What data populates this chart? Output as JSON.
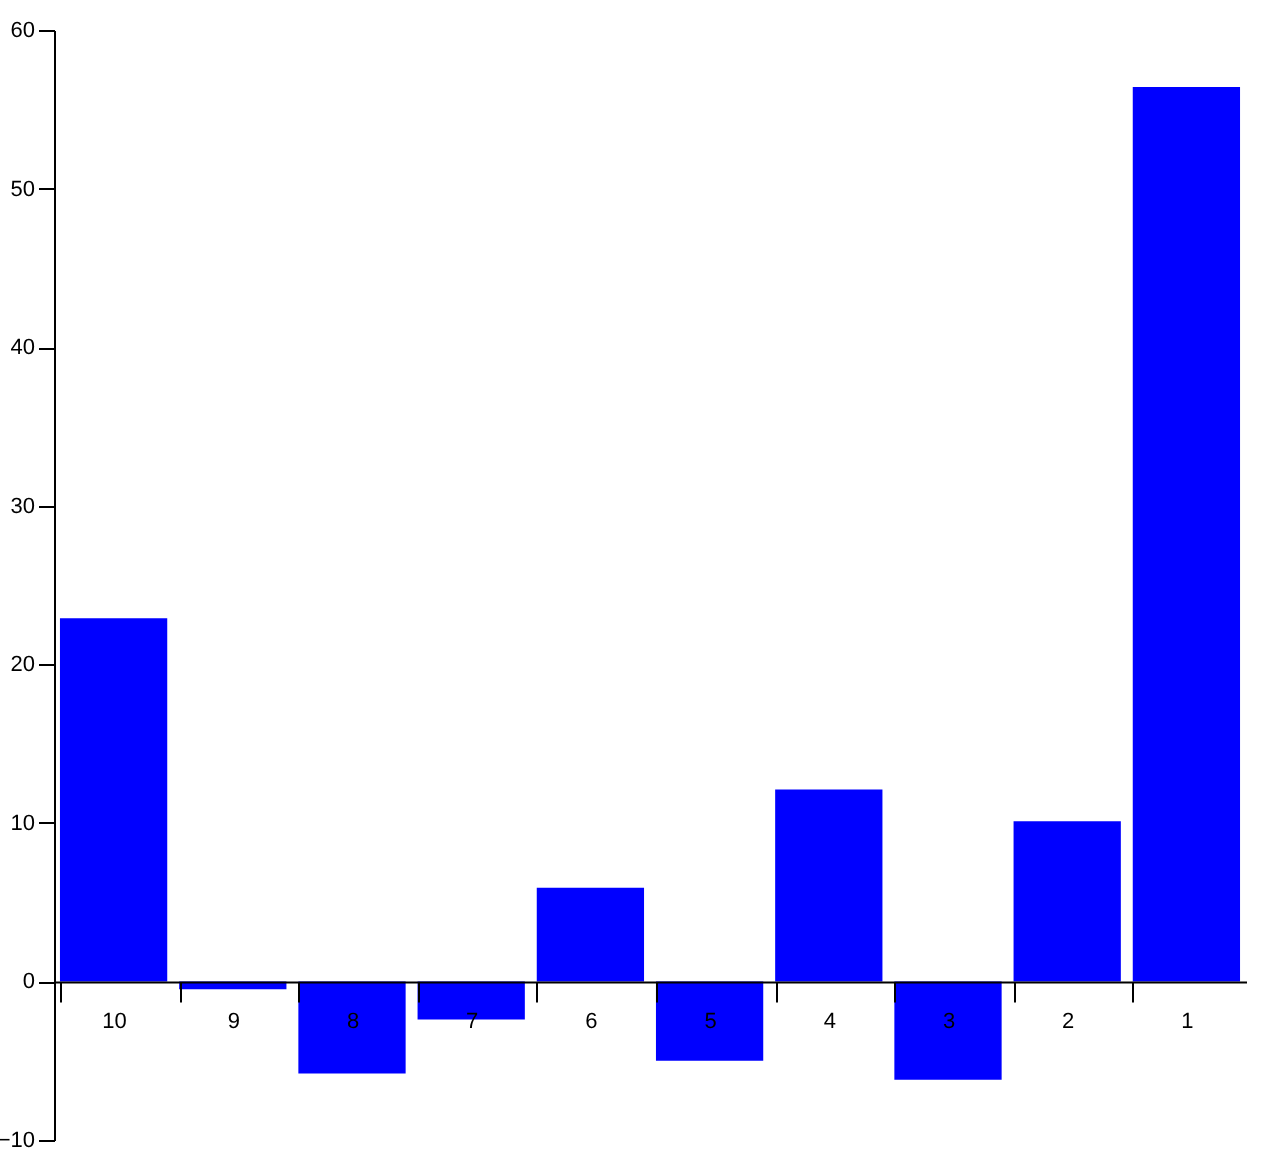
{
  "chart_data": {
    "type": "bar",
    "categories": [
      "10",
      "9",
      "8",
      "7",
      "6",
      "5",
      "4",
      "3",
      "2",
      "1"
    ],
    "values": [
      22.9,
      -0.5,
      -5.8,
      -2.4,
      5.9,
      -5.0,
      12.1,
      -6.2,
      10.1,
      56.4
    ],
    "color": "#0000ff",
    "ylim": [
      -10,
      60
    ],
    "yticks": [
      -10,
      0,
      10,
      20,
      30,
      40,
      50,
      60
    ],
    "grid": false
  }
}
